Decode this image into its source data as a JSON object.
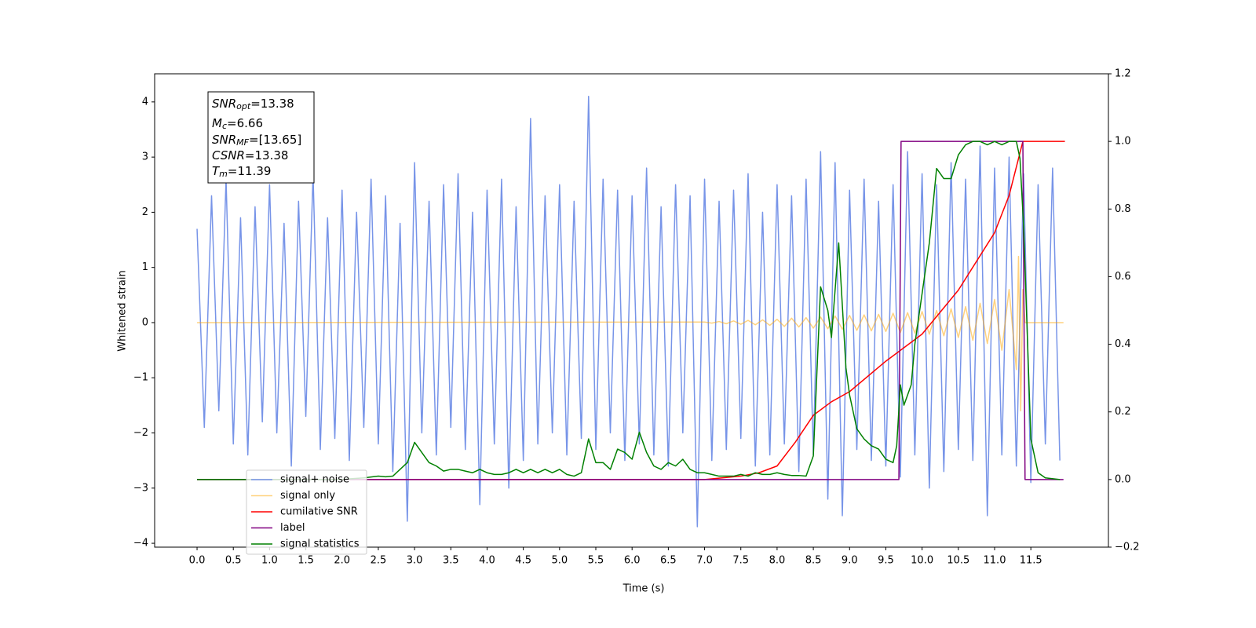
{
  "chart_data": {
    "type": "line",
    "xlabel": "Time (s)",
    "ylabel": "Whitened strain",
    "xlim": [
      -0.585,
      12.57
    ],
    "ylim": [
      -4.07,
      4.51
    ],
    "y2lim": [
      -0.2,
      1.2
    ],
    "xticks": [
      {
        "value": 0,
        "label": "0.0"
      },
      0.5,
      {
        "value": 1,
        "label": "1.0"
      },
      1.5,
      {
        "value": 2,
        "label": "2.0"
      },
      2.5,
      {
        "value": 3,
        "label": "3.0"
      },
      3.5,
      {
        "value": 4,
        "label": "4.0"
      },
      4.5,
      {
        "value": 5,
        "label": "5.0"
      },
      5.5,
      {
        "value": 6,
        "label": "6.0"
      },
      6.5,
      {
        "value": 7,
        "label": "7.0"
      },
      7.5,
      {
        "value": 8,
        "label": "8.0"
      },
      8.5,
      {
        "value": 9,
        "label": "9.0"
      },
      9.5,
      {
        "value": 10,
        "label": "10.0"
      },
      10.5,
      {
        "value": 11,
        "label": "11.0"
      },
      11.5
    ],
    "yticks": [
      {
        "value": -4,
        "label": "−4"
      },
      {
        "value": -3,
        "label": "−3"
      },
      {
        "value": -2,
        "label": "−2"
      },
      {
        "value": -1,
        "label": "−1"
      },
      0,
      1,
      2,
      3,
      4
    ],
    "y2ticks": [
      {
        "value": -0.2,
        "label": "−0.2"
      },
      {
        "value": 0,
        "label": "0.0"
      },
      0.2,
      0.4,
      0.6,
      0.8,
      {
        "value": 1,
        "label": "1.0"
      },
      1.2
    ],
    "legend_loc": "lower left",
    "annotations": [
      {
        "symbol": "SNR",
        "sub": "opt",
        "text": "=13.38"
      },
      {
        "symbol": "M",
        "sub": "c",
        "text": "=6.66"
      },
      {
        "symbol": "SNR",
        "sub": "MF",
        "text": "=[13.65]"
      },
      {
        "symbol": "CSNR",
        "text": "=13.38"
      },
      {
        "symbol": "T",
        "sub": "m",
        "text": "=11.39"
      }
    ],
    "series": [
      {
        "name": "signal+ noise",
        "color": "#7794e8",
        "alpha": 1,
        "x": [
          0,
          0.1,
          0.2,
          0.3,
          0.4,
          0.5,
          0.6,
          0.7,
          0.8,
          0.9,
          1,
          1.1,
          1.2,
          1.3,
          1.4,
          1.5,
          1.6,
          1.7,
          1.8,
          1.9,
          2,
          2.1,
          2.2,
          2.3,
          2.4,
          2.5,
          2.6,
          2.7,
          2.8,
          2.9,
          3,
          3.1,
          3.2,
          3.3,
          3.4,
          3.5,
          3.6,
          3.7,
          3.8,
          3.9,
          4,
          4.1,
          4.2,
          4.3,
          4.4,
          4.5,
          4.6,
          4.7,
          4.8,
          4.9,
          5,
          5.1,
          5.2,
          5.3,
          5.4,
          5.5,
          5.6,
          5.7,
          5.8,
          5.9,
          6,
          6.1,
          6.2,
          6.3,
          6.4,
          6.5,
          6.6,
          6.7,
          6.8,
          6.9,
          7,
          7.1,
          7.2,
          7.3,
          7.4,
          7.5,
          7.6,
          7.7,
          7.8,
          7.9,
          8,
          8.1,
          8.2,
          8.3,
          8.4,
          8.5,
          8.6,
          8.7,
          8.8,
          8.9,
          9,
          9.1,
          9.2,
          9.3,
          9.4,
          9.5,
          9.6,
          9.7,
          9.8,
          9.9,
          10,
          10.1,
          10.2,
          10.3,
          10.4,
          10.5,
          10.6,
          10.7,
          10.8,
          10.9,
          11,
          11.1,
          11.2,
          11.3,
          11.4,
          11.5,
          11.6,
          11.7,
          11.8,
          11.9
        ],
        "values": [
          1.7,
          -1.9,
          2.3,
          -1.6,
          2.6,
          -2.2,
          1.9,
          -2.4,
          2.1,
          -1.8,
          2.5,
          -2.0,
          1.8,
          -2.6,
          2.2,
          -1.7,
          2.7,
          -2.3,
          1.9,
          -2.1,
          2.4,
          -2.5,
          2.0,
          -1.9,
          2.6,
          -2.2,
          2.3,
          -2.7,
          1.8,
          -3.6,
          2.9,
          -2.0,
          2.2,
          -2.4,
          2.5,
          -1.9,
          2.7,
          -2.3,
          2.0,
          -3.3,
          2.4,
          -2.2,
          2.6,
          -3.0,
          2.1,
          -2.5,
          3.7,
          -2.2,
          2.3,
          -2.0,
          2.5,
          -2.4,
          2.2,
          -2.1,
          4.1,
          -2.3,
          2.6,
          -2.0,
          2.4,
          -2.5,
          2.3,
          -2.2,
          2.8,
          -2.4,
          2.1,
          -2.6,
          2.5,
          -2.0,
          2.3,
          -3.7,
          2.6,
          -2.5,
          2.2,
          -2.3,
          2.4,
          -2.1,
          2.7,
          -2.6,
          2.0,
          -2.4,
          2.5,
          -2.2,
          2.3,
          -2.7,
          2.6,
          -2.4,
          3.1,
          -3.2,
          2.9,
          -3.5,
          2.4,
          -2.3,
          2.6,
          -2.5,
          2.2,
          -2.6,
          2.5,
          -2.8,
          3.1,
          -2.4,
          2.7,
          -3.0,
          2.5,
          -2.7,
          2.9,
          -2.3,
          2.6,
          -2.5,
          3.2,
          -3.5,
          2.8,
          -2.4,
          3.0,
          -2.6,
          2.7,
          -2.9,
          2.5,
          -2.2,
          2.8,
          -2.5
        ]
      },
      {
        "name": "signal only",
        "color": "#ffa500",
        "alpha": 0.5,
        "x": [
          0,
          7,
          7.1,
          7.2,
          7.3,
          7.4,
          7.5,
          7.6,
          7.7,
          7.8,
          7.9,
          8,
          8.1,
          8.2,
          8.3,
          8.4,
          8.5,
          8.6,
          8.7,
          8.8,
          8.9,
          9,
          9.1,
          9.2,
          9.3,
          9.4,
          9.5,
          9.6,
          9.7,
          9.8,
          9.9,
          10,
          10.1,
          10.2,
          10.3,
          10.4,
          10.5,
          10.6,
          10.7,
          10.8,
          10.9,
          11,
          11.1,
          11.2,
          11.3,
          11.33,
          11.36,
          11.39,
          11.42,
          11.95
        ],
        "values": [
          0,
          0.01,
          -0.01,
          0.02,
          -0.02,
          0.03,
          -0.03,
          0.04,
          -0.04,
          0.05,
          -0.05,
          0.06,
          -0.07,
          0.08,
          -0.08,
          0.09,
          -0.1,
          0.1,
          -0.11,
          0.12,
          -0.12,
          0.13,
          -0.14,
          0.14,
          -0.15,
          0.15,
          -0.16,
          0.17,
          -0.18,
          0.18,
          -0.19,
          0.2,
          -0.21,
          0.22,
          -0.24,
          0.25,
          -0.27,
          0.29,
          -0.32,
          0.35,
          -0.38,
          0.42,
          -0.5,
          0.6,
          -0.85,
          1.2,
          -1.6,
          0.6,
          0,
          0
        ]
      },
      {
        "name": "cumilative SNR",
        "color": "#ff0000",
        "alpha": 1,
        "axis": "y2",
        "x": [
          0,
          7,
          7.5,
          7.75,
          8,
          8.25,
          8.5,
          8.75,
          9,
          9.5,
          10,
          10.5,
          11,
          11.2,
          11.39,
          11.97
        ],
        "values": [
          0,
          0,
          0.01,
          0.02,
          0.04,
          0.11,
          0.19,
          0.23,
          0.26,
          0.35,
          0.43,
          0.56,
          0.73,
          0.84,
          1,
          1
        ]
      },
      {
        "name": "label",
        "color": "#800080",
        "alpha": 1,
        "axis": "y2",
        "x": [
          0,
          9.68,
          9.71,
          11.39,
          11.42,
          11.95
        ],
        "values": [
          0,
          0,
          1,
          1,
          0,
          0
        ]
      },
      {
        "name": "signal statistics",
        "color": "#008000",
        "alpha": 1,
        "axis": "y2",
        "x": [
          0,
          2.0,
          2.1,
          2.3,
          2.5,
          2.6,
          2.7,
          2.8,
          2.9,
          3.0,
          3.1,
          3.2,
          3.3,
          3.4,
          3.5,
          3.6,
          3.7,
          3.8,
          3.9,
          4.0,
          4.1,
          4.2,
          4.3,
          4.4,
          4.5,
          4.6,
          4.7,
          4.8,
          4.9,
          5.0,
          5.1,
          5.2,
          5.3,
          5.4,
          5.5,
          5.6,
          5.7,
          5.8,
          5.9,
          6.0,
          6.1,
          6.2,
          6.3,
          6.4,
          6.5,
          6.6,
          6.7,
          6.8,
          6.9,
          7.0,
          7.1,
          7.2,
          7.3,
          7.4,
          7.5,
          7.6,
          7.7,
          7.8,
          7.9,
          8.0,
          8.1,
          8.2,
          8.3,
          8.4,
          8.5,
          8.6,
          8.7,
          8.75,
          8.85,
          8.95,
          9.0,
          9.1,
          9.2,
          9.3,
          9.4,
          9.5,
          9.6,
          9.65,
          9.7,
          9.75,
          9.85,
          9.9,
          10.0,
          10.1,
          10.2,
          10.3,
          10.4,
          10.5,
          10.6,
          10.7,
          10.8,
          10.9,
          11.0,
          11.1,
          11.2,
          11.3,
          11.35,
          11.4,
          11.5,
          11.6,
          11.7,
          11.9
        ],
        "values": [
          0,
          0,
          0.002,
          0.005,
          0.01,
          0.008,
          0.01,
          0.03,
          0.05,
          0.11,
          0.08,
          0.05,
          0.04,
          0.025,
          0.03,
          0.03,
          0.025,
          0.02,
          0.03,
          0.02,
          0.015,
          0.015,
          0.02,
          0.03,
          0.02,
          0.03,
          0.02,
          0.03,
          0.02,
          0.03,
          0.015,
          0.01,
          0.02,
          0.12,
          0.05,
          0.05,
          0.03,
          0.09,
          0.08,
          0.06,
          0.14,
          0.08,
          0.04,
          0.03,
          0.05,
          0.04,
          0.06,
          0.03,
          0.02,
          0.02,
          0.015,
          0.01,
          0.01,
          0.01,
          0.015,
          0.01,
          0.02,
          0.015,
          0.015,
          0.02,
          0.015,
          0.012,
          0.012,
          0.01,
          0.07,
          0.57,
          0.5,
          0.42,
          0.7,
          0.33,
          0.25,
          0.15,
          0.12,
          0.1,
          0.09,
          0.06,
          0.05,
          0.1,
          0.28,
          0.22,
          0.28,
          0.4,
          0.55,
          0.7,
          0.92,
          0.89,
          0.89,
          0.96,
          0.99,
          1,
          1,
          0.99,
          1,
          0.99,
          1,
          1,
          0.95,
          0.75,
          0.12,
          0.02,
          0.005,
          0
        ]
      }
    ]
  }
}
